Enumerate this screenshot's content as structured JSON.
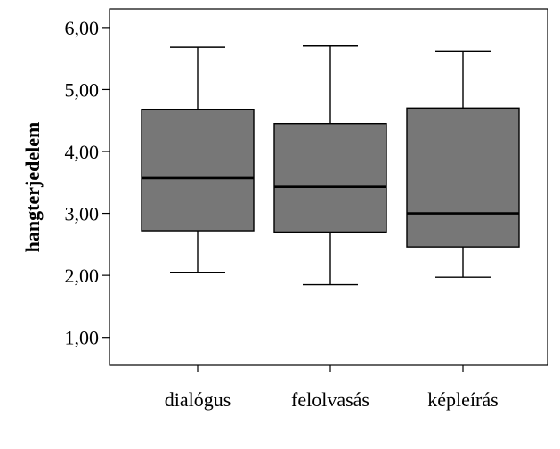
{
  "chart_data": {
    "type": "boxplot",
    "title": "",
    "xlabel": "",
    "ylabel": "hangterjedelem",
    "ylim": [
      0.55,
      6.3
    ],
    "yticks": [
      1,
      2,
      3,
      4,
      5,
      6
    ],
    "ytick_labels": [
      "1,00",
      "2,00",
      "3,00",
      "4,00",
      "5,00",
      "6,00"
    ],
    "grid": false,
    "box_color": "#777777",
    "line_color": "#000000",
    "categories": [
      "dialógus",
      "felolvasás",
      "képleírás"
    ],
    "boxes": [
      {
        "category": "dialógus",
        "whisker_low": 2.05,
        "q1": 2.72,
        "median": 3.57,
        "q3": 4.68,
        "whisker_high": 5.68
      },
      {
        "category": "felolvasás",
        "whisker_low": 1.85,
        "q1": 2.7,
        "median": 3.43,
        "q3": 4.45,
        "whisker_high": 5.7
      },
      {
        "category": "képleírás",
        "whisker_low": 1.97,
        "q1": 2.46,
        "median": 3.0,
        "q3": 4.7,
        "whisker_high": 5.62
      }
    ]
  }
}
